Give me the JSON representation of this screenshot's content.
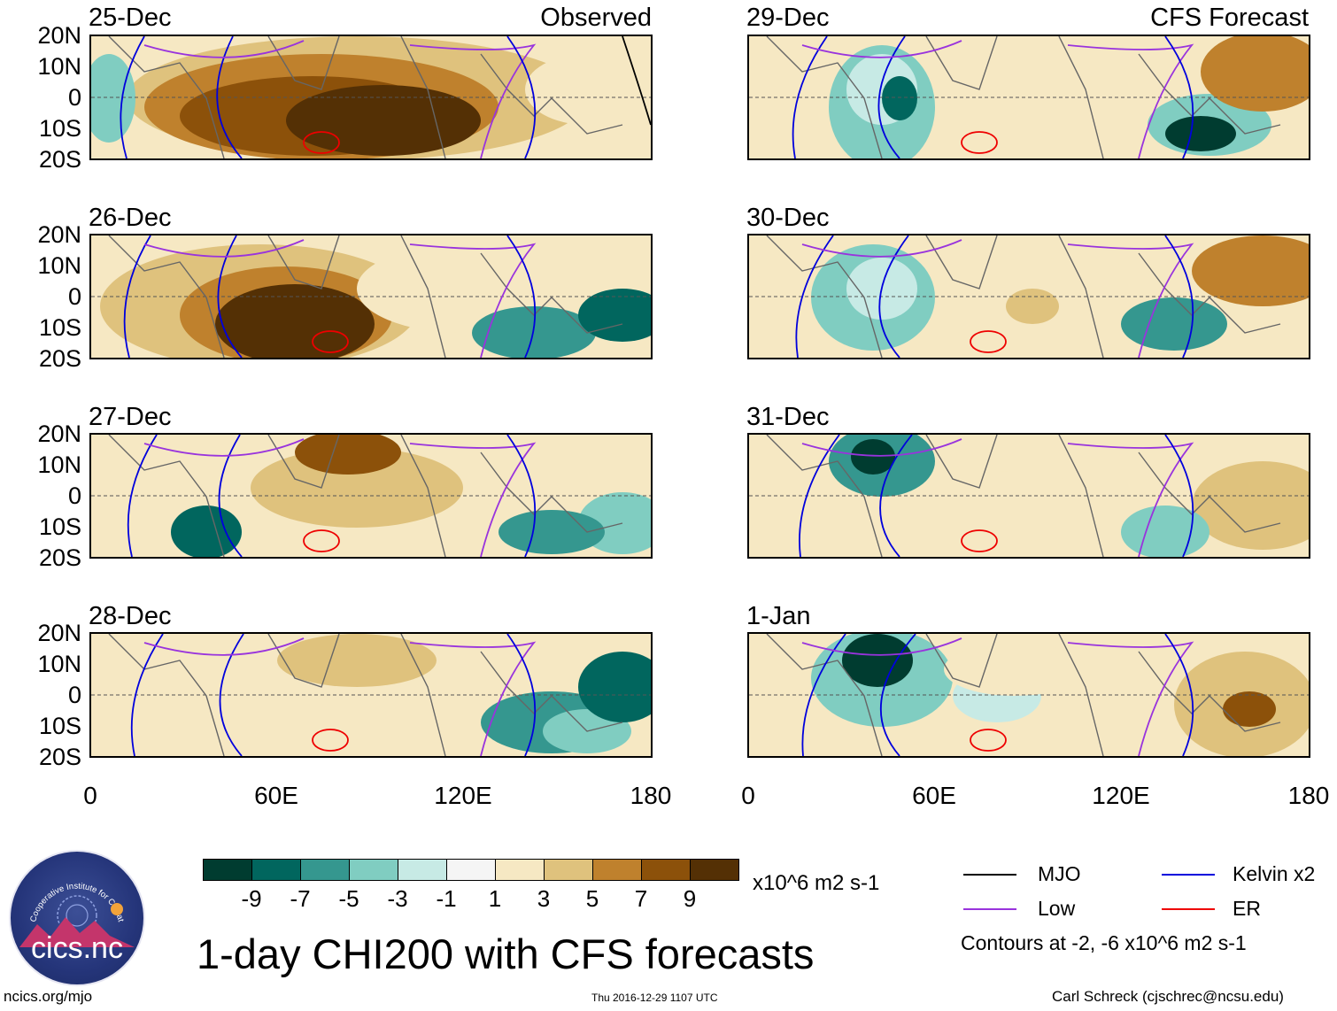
{
  "title": "1-day CHI200 with CFS forecasts",
  "left_column_label": "Observed",
  "right_column_label": "CFS Forecast",
  "left_panels": [
    "25-Dec",
    "26-Dec",
    "27-Dec",
    "28-Dec"
  ],
  "right_panels": [
    "29-Dec",
    "30-Dec",
    "31-Dec",
    "1-Jan"
  ],
  "lat_ticks": [
    "20N",
    "10N",
    "0",
    "10S",
    "20S"
  ],
  "lon_ticks": [
    "0",
    "60E",
    "120E",
    "180"
  ],
  "colorbar": {
    "labels": [
      "-9",
      "-7",
      "-5",
      "-3",
      "-1",
      "1",
      "3",
      "5",
      "7",
      "9"
    ],
    "units": "x10^6 m2 s-1",
    "colors": [
      "#003c30",
      "#01665e",
      "#35978f",
      "#80cdc1",
      "#c7eae5",
      "#f5f5f5",
      "#f6e8c3",
      "#dfc27d",
      "#bf812d",
      "#8c510a",
      "#543005"
    ]
  },
  "legend": {
    "mjo": "MJO",
    "kelvin": "Kelvin x2",
    "low": "Low",
    "er": "ER",
    "contours_note": "Contours at -2, -6 x10^6 m2 s-1",
    "colors": {
      "mjo": "#000000",
      "kelvin": "#0000dd",
      "low": "#9933dd",
      "er": "#ee0000"
    }
  },
  "logo_text": "cics.nc",
  "logo_ring_text": "Cooperative Institute for Climate and Satellites",
  "footer": {
    "left": "ncics.org/mjo",
    "center": "Thu 2016-12-29 1107 UTC",
    "right": "Carl Schreck (cjschrec@ncsu.edu)"
  }
}
